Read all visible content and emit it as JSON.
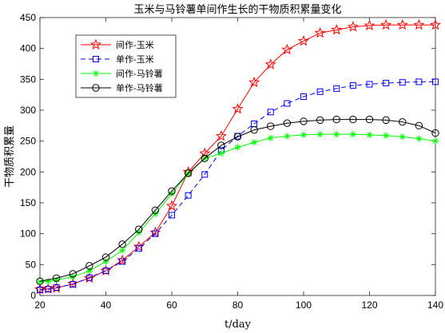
{
  "chart_data": {
    "type": "line",
    "title": "玉米与马铃薯单间作生长的干物质积累量变化",
    "xlabel": "t/day",
    "ylabel": "干物质积累量",
    "xlim": [
      20,
      140
    ],
    "ylim": [
      0,
      450
    ],
    "xticks": [
      20,
      40,
      60,
      80,
      100,
      120,
      140
    ],
    "yticks": [
      0,
      50,
      100,
      150,
      200,
      250,
      300,
      350,
      400,
      450
    ],
    "grid": false,
    "legend_position": "top-left",
    "series": [
      {
        "name": "间作-玉米",
        "color": "#ff0000",
        "line_style": "solid",
        "marker": "star",
        "x": [
          20,
          22.5,
          25,
          30,
          35,
          40,
          45,
          50,
          55,
          60,
          65,
          70,
          75,
          80,
          85,
          90,
          95,
          100,
          105,
          110,
          115,
          120,
          125,
          130,
          135,
          140
        ],
        "y": [
          10,
          11,
          12,
          19,
          28,
          40,
          57,
          79,
          102,
          145,
          200,
          230,
          258,
          302,
          345,
          374,
          398,
          412,
          425,
          430,
          435,
          437,
          438,
          438,
          438,
          438
        ]
      },
      {
        "name": "单作-玉米",
        "color": "#0000ff",
        "line_style": "dashed",
        "marker": "square",
        "x": [
          20,
          22.5,
          25,
          30,
          35,
          40,
          45,
          50,
          55,
          60,
          65,
          70,
          75,
          80,
          85,
          90,
          95,
          100,
          105,
          110,
          115,
          120,
          125,
          130,
          135,
          140
        ],
        "y": [
          9,
          10,
          13,
          18,
          29,
          40,
          55,
          76,
          100,
          130,
          162,
          196,
          235,
          258,
          278,
          297,
          311,
          322,
          330,
          335,
          340,
          342,
          344,
          345,
          346,
          346
        ]
      },
      {
        "name": "间作-马铃薯",
        "color": "#00ff00",
        "line_style": "solid",
        "marker": "asterisk",
        "x": [
          20,
          22.5,
          25,
          30,
          35,
          40,
          45,
          50,
          55,
          60,
          65,
          70,
          75,
          80,
          85,
          90,
          95,
          100,
          105,
          110,
          115,
          120,
          125,
          130,
          135,
          140
        ],
        "y": [
          22,
          23,
          25,
          30,
          40,
          55,
          73,
          102,
          132,
          165,
          197,
          222,
          230,
          240,
          248,
          255,
          258,
          260,
          261,
          261,
          261,
          260,
          259,
          257,
          254,
          250
        ]
      },
      {
        "name": "单作-马铃薯",
        "color": "#000000",
        "line_style": "solid",
        "marker": "circle",
        "x": [
          20,
          25,
          30,
          35,
          40,
          45,
          50,
          55,
          60,
          65,
          70,
          75,
          80,
          85,
          90,
          95,
          100,
          105,
          110,
          115,
          120,
          125,
          130,
          135,
          140
        ],
        "y": [
          23,
          28,
          35,
          48,
          62,
          83,
          107,
          138,
          169,
          198,
          222,
          243,
          257,
          268,
          274,
          279,
          282,
          284,
          285,
          285,
          285,
          284,
          281,
          275,
          263
        ]
      }
    ]
  }
}
